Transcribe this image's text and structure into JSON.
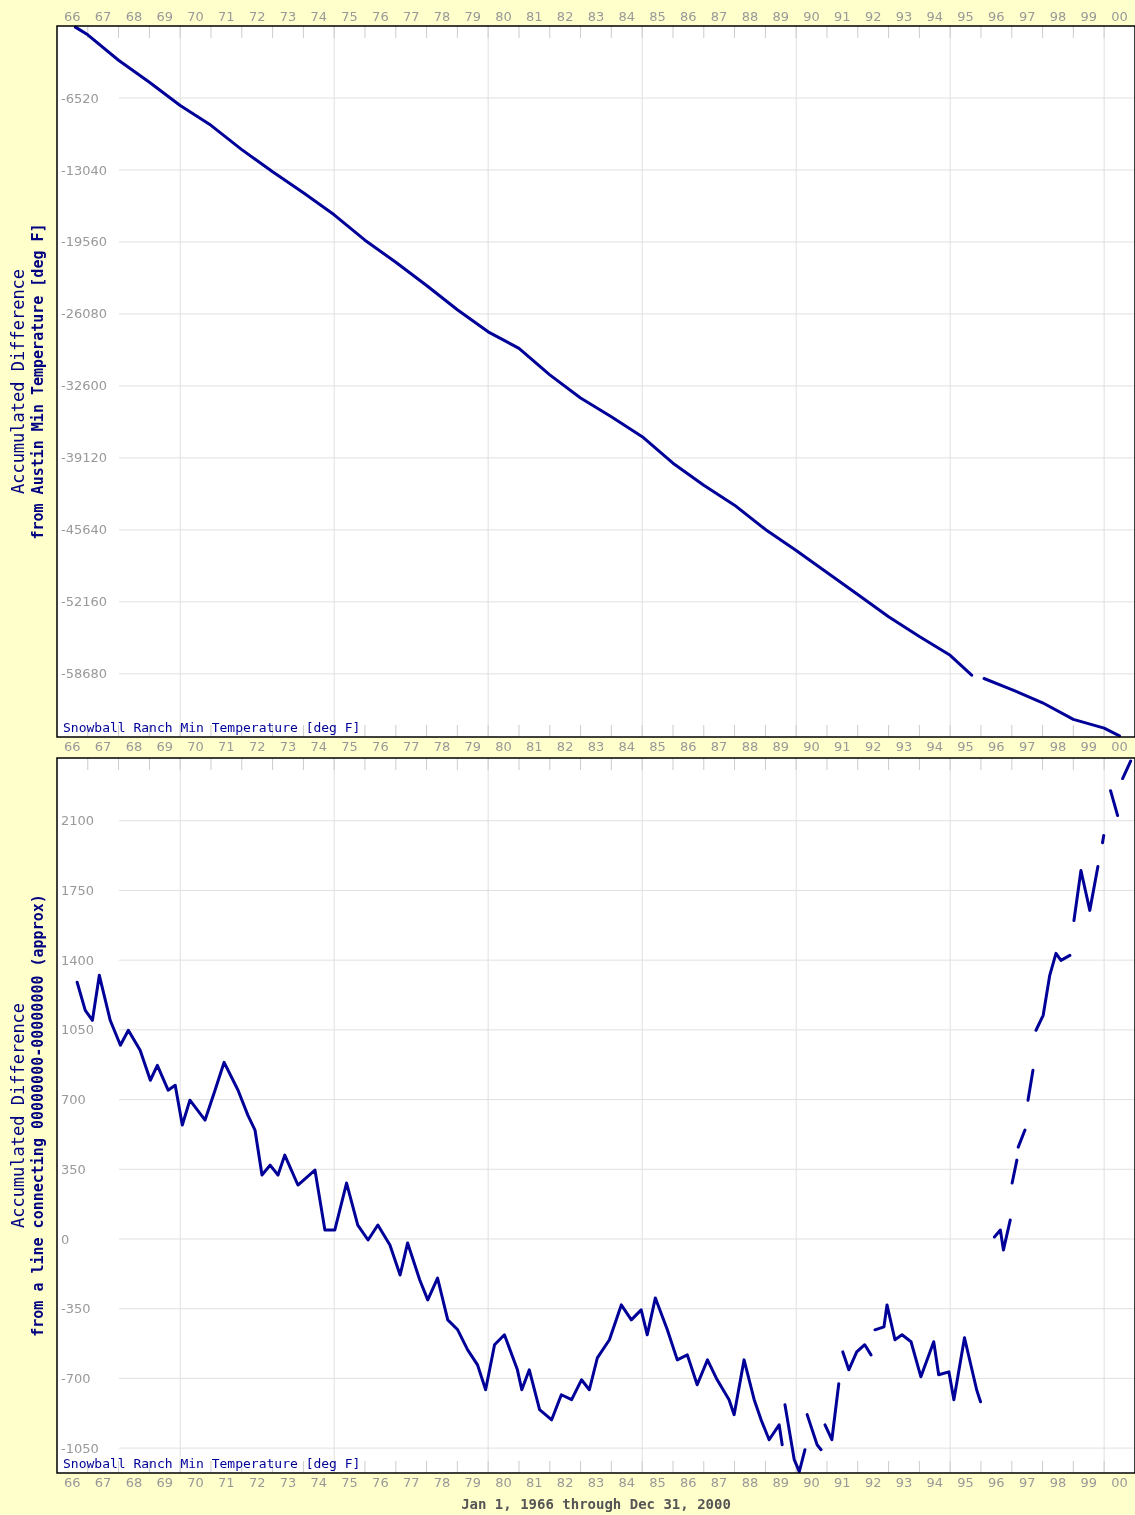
{
  "chart_data": [
    {
      "type": "line",
      "ylabel": "Accumulated Difference\nfrom Austin Min Temperature [deg F]",
      "xlim": [
        "1966-01-01",
        "2001-01-01"
      ],
      "ylim": [
        -64400,
        0
      ],
      "yticks": [
        -6520,
        -13040,
        -19560,
        -26080,
        -32600,
        -39120,
        -45640,
        -52160,
        -58680
      ],
      "xticks": [
        {
          "value": "1966-07-02",
          "label": "66"
        },
        {
          "value": "1967-07-02",
          "label": "67"
        },
        {
          "value": "1968-07-02",
          "label": "68"
        },
        {
          "value": "1969-07-02",
          "label": "69"
        },
        {
          "value": "1970-07-02",
          "label": "70"
        },
        {
          "value": "1971-07-02",
          "label": "71"
        },
        {
          "value": "1972-07-02",
          "label": "72"
        },
        {
          "value": "1973-07-02",
          "label": "73"
        },
        {
          "value": "1974-07-02",
          "label": "74"
        },
        {
          "value": "1975-07-02",
          "label": "75"
        },
        {
          "value": "1976-07-02",
          "label": "76"
        },
        {
          "value": "1977-07-02",
          "label": "77"
        },
        {
          "value": "1978-07-02",
          "label": "78"
        },
        {
          "value": "1979-07-02",
          "label": "79"
        },
        {
          "value": "1980-07-02",
          "label": "80"
        },
        {
          "value": "1981-07-02",
          "label": "81"
        },
        {
          "value": "1982-07-02",
          "label": "82"
        },
        {
          "value": "1983-07-02",
          "label": "83"
        },
        {
          "value": "1984-07-02",
          "label": "84"
        },
        {
          "value": "1985-07-02",
          "label": "85"
        },
        {
          "value": "1986-07-02",
          "label": "86"
        },
        {
          "value": "1987-07-02",
          "label": "87"
        },
        {
          "value": "1988-07-02",
          "label": "88"
        },
        {
          "value": "1989-07-02",
          "label": "89"
        },
        {
          "value": "1990-07-02",
          "label": "90"
        },
        {
          "value": "1991-07-02",
          "label": "91"
        },
        {
          "value": "1992-07-02",
          "label": "92"
        },
        {
          "value": "1993-07-02",
          "label": "93"
        },
        {
          "value": "1994-07-02",
          "label": "94"
        },
        {
          "value": "1995-07-02",
          "label": "95"
        },
        {
          "value": "1996-07-02",
          "label": "96"
        },
        {
          "value": "1997-07-02",
          "label": "97"
        },
        {
          "value": "1998-07-02",
          "label": "98"
        },
        {
          "value": "1999-07-02",
          "label": "99"
        },
        {
          "value": "2000-07-02",
          "label": "00"
        },
        {
          "value": "1967-01-01",
          "label": null
        },
        {
          "value": "1968-01-01",
          "label": null
        },
        {
          "value": "1969-01-01",
          "label": null
        },
        {
          "value": "1970-01-01",
          "label": null
        },
        {
          "value": "1971-01-01",
          "label": null
        },
        {
          "value": "1972-01-01",
          "label": null
        },
        {
          "value": "1973-01-01",
          "label": null
        },
        {
          "value": "1974-01-01",
          "label": null
        },
        {
          "value": "1975-01-01",
          "label": null
        },
        {
          "value": "1976-01-01",
          "label": null
        },
        {
          "value": "1977-01-01",
          "label": null
        },
        {
          "value": "1978-01-01",
          "label": null
        },
        {
          "value": "1979-01-01",
          "label": null
        },
        {
          "value": "1980-01-01",
          "label": null
        },
        {
          "value": "1981-01-01",
          "label": null
        },
        {
          "value": "1982-01-01",
          "label": null
        },
        {
          "value": "1983-01-01",
          "label": null
        },
        {
          "value": "1984-01-01",
          "label": null
        },
        {
          "value": "1985-01-01",
          "label": null
        },
        {
          "value": "1986-01-01",
          "label": null
        },
        {
          "value": "1987-01-01",
          "label": null
        },
        {
          "value": "1988-01-01",
          "label": null
        },
        {
          "value": "1989-01-01",
          "label": null
        },
        {
          "value": "1990-01-01",
          "label": null
        },
        {
          "value": "1991-01-01",
          "label": null
        },
        {
          "value": "1992-01-01",
          "label": null
        },
        {
          "value": "1993-01-01",
          "label": null
        },
        {
          "value": "1994-01-01",
          "label": null
        },
        {
          "value": "1995-01-01",
          "label": null
        },
        {
          "value": "1996-01-01",
          "label": null
        },
        {
          "value": "1997-01-01",
          "label": null
        },
        {
          "value": "1998-01-01",
          "label": null
        },
        {
          "value": "1999-01-01",
          "label": null
        },
        {
          "value": "2000-01-01",
          "label": null
        }
      ],
      "x2lim": [
        "1966-01-01",
        "2001-01-01"
      ],
      "x2ticks": [
        {
          "value": "1966-07-02",
          "label": "66"
        },
        {
          "value": "1967-07-02",
          "label": "67"
        },
        {
          "value": "1968-07-02",
          "label": "68"
        },
        {
          "value": "1969-07-02",
          "label": "69"
        },
        {
          "value": "1970-07-02",
          "label": "70"
        },
        {
          "value": "1971-07-02",
          "label": "71"
        },
        {
          "value": "1972-07-02",
          "label": "72"
        },
        {
          "value": "1973-07-02",
          "label": "73"
        },
        {
          "value": "1974-07-02",
          "label": "74"
        },
        {
          "value": "1975-07-02",
          "label": "75"
        },
        {
          "value": "1976-07-02",
          "label": "76"
        },
        {
          "value": "1977-07-02",
          "label": "77"
        },
        {
          "value": "1978-07-02",
          "label": "78"
        },
        {
          "value": "1979-07-02",
          "label": "79"
        },
        {
          "value": "1980-07-02",
          "label": "80"
        },
        {
          "value": "1981-07-02",
          "label": "81"
        },
        {
          "value": "1982-07-02",
          "label": "82"
        },
        {
          "value": "1983-07-02",
          "label": "83"
        },
        {
          "value": "1984-07-02",
          "label": "84"
        },
        {
          "value": "1985-07-02",
          "label": "85"
        },
        {
          "value": "1986-07-02",
          "label": "86"
        },
        {
          "value": "1987-07-02",
          "label": "87"
        },
        {
          "value": "1988-07-02",
          "label": "88"
        },
        {
          "value": "1989-07-02",
          "label": "89"
        },
        {
          "value": "1990-07-02",
          "label": "90"
        },
        {
          "value": "1991-07-02",
          "label": "91"
        },
        {
          "value": "1992-07-02",
          "label": "92"
        },
        {
          "value": "1993-07-02",
          "label": "93"
        },
        {
          "value": "1994-07-02",
          "label": "94"
        },
        {
          "value": "1995-07-02",
          "label": "95"
        },
        {
          "value": "1996-07-02",
          "label": "96"
        },
        {
          "value": "1997-07-02",
          "label": "97"
        },
        {
          "value": "1998-07-02",
          "label": "98"
        },
        {
          "value": "1999-07-02",
          "label": "99"
        },
        {
          "value": "2000-07-02",
          "label": "00"
        },
        {
          "value": "1967-01-01",
          "label": null
        },
        {
          "value": "1968-01-01",
          "label": null
        },
        {
          "value": "1969-01-01",
          "label": null
        },
        {
          "value": "1970-01-01",
          "label": null
        },
        {
          "value": "1971-01-01",
          "label": null
        },
        {
          "value": "1972-01-01",
          "label": null
        },
        {
          "value": "1973-01-01",
          "label": null
        },
        {
          "value": "1974-01-01",
          "label": null
        },
        {
          "value": "1975-01-01",
          "label": null
        },
        {
          "value": "1976-01-01",
          "label": null
        },
        {
          "value": "1977-01-01",
          "label": null
        },
        {
          "value": "1978-01-01",
          "label": null
        },
        {
          "value": "1979-01-01",
          "label": null
        },
        {
          "value": "1980-01-01",
          "label": null
        },
        {
          "value": "1981-01-01",
          "label": null
        },
        {
          "value": "1982-01-01",
          "label": null
        },
        {
          "value": "1983-01-01",
          "label": null
        },
        {
          "value": "1984-01-01",
          "label": null
        },
        {
          "value": "1985-01-01",
          "label": null
        },
        {
          "value": "1986-01-01",
          "label": null
        },
        {
          "value": "1987-01-01",
          "label": null
        },
        {
          "value": "1988-01-01",
          "label": null
        },
        {
          "value": "1989-01-01",
          "label": null
        },
        {
          "value": "1990-01-01",
          "label": null
        },
        {
          "value": "1991-01-01",
          "label": null
        },
        {
          "value": "1992-01-01",
          "label": null
        },
        {
          "value": "1993-01-01",
          "label": null
        },
        {
          "value": "1994-01-01",
          "label": null
        },
        {
          "value": "1995-01-01",
          "label": null
        },
        {
          "value": "1996-01-01",
          "label": null
        },
        {
          "value": "1997-01-01",
          "label": null
        },
        {
          "value": "1998-01-01",
          "label": null
        },
        {
          "value": "1999-01-01",
          "label": null
        },
        {
          "value": "2000-01-01",
          "label": null
        }
      ],
      "grid": true,
      "line_style": "solid",
      "series": [
        {
          "name": "Snowball Ranch Min Temperature [deg F]",
          "color": "#000099",
          "x": [
            "1966-08-07",
            "1967-01-01",
            "1968-01-01",
            "1969-01-01",
            "1970-01-01",
            "1971-01-01",
            "1972-01-01",
            "1973-01-01",
            "1974-01-01",
            "1975-01-01",
            "1976-01-01",
            "1977-01-01",
            "1978-01-01",
            "1979-01-01",
            "1980-01-01",
            "1981-01-01",
            "1982-01-01",
            "1983-01-01",
            "1984-01-01",
            "1985-01-01",
            "1986-01-01",
            "1987-01-01",
            "1988-01-01",
            "1989-01-01",
            "1990-01-01",
            "1991-01-01",
            "1992-01-01",
            "1993-01-01",
            "1994-01-01",
            "1995-01-01",
            "1995-09-13",
            "1995-11-01",
            "1996-02-07",
            "1997-01-01",
            "1998-01-01",
            "1999-01-01",
            "2000-01-01",
            "2000-07-01"
          ],
          "values": [
            -100,
            -800,
            -3100,
            -5100,
            -7200,
            -9000,
            -11200,
            -13200,
            -15100,
            -17100,
            -19400,
            -21400,
            -23500,
            -25700,
            -27700,
            -29200,
            -31600,
            -33700,
            -35400,
            -37200,
            -39600,
            -41600,
            -43400,
            -45600,
            -47500,
            -49500,
            -51500,
            -53500,
            -55300,
            -57000,
            -58800,
            null,
            -59100,
            -60100,
            -61300,
            -62800,
            -63600,
            -64300
          ]
        }
      ]
    },
    {
      "type": "line",
      "ylabel": "Accumulated Difference\nfrom a line connecting 00000000-00000000 (approx)",
      "xlabel": "Jan 1, 1966 through Dec 31, 2000",
      "xlim": [
        "1966-01-01",
        "2001-01-01"
      ],
      "ylim": [
        -1175,
        2415
      ],
      "yticks": [
        -1050,
        -700,
        -350,
        0,
        350,
        700,
        1050,
        1400,
        1750,
        2100
      ],
      "xticks": [
        {
          "value": "1966-07-02",
          "label": "66"
        },
        {
          "value": "1967-07-02",
          "label": "67"
        },
        {
          "value": "1968-07-02",
          "label": "68"
        },
        {
          "value": "1969-07-02",
          "label": "69"
        },
        {
          "value": "1970-07-02",
          "label": "70"
        },
        {
          "value": "1971-07-02",
          "label": "71"
        },
        {
          "value": "1972-07-02",
          "label": "72"
        },
        {
          "value": "1973-07-02",
          "label": "73"
        },
        {
          "value": "1974-07-02",
          "label": "74"
        },
        {
          "value": "1975-07-02",
          "label": "75"
        },
        {
          "value": "1976-07-02",
          "label": "76"
        },
        {
          "value": "1977-07-02",
          "label": "77"
        },
        {
          "value": "1978-07-02",
          "label": "78"
        },
        {
          "value": "1979-07-02",
          "label": "79"
        },
        {
          "value": "1980-07-02",
          "label": "80"
        },
        {
          "value": "1981-07-02",
          "label": "81"
        },
        {
          "value": "1982-07-02",
          "label": "82"
        },
        {
          "value": "1983-07-02",
          "label": "83"
        },
        {
          "value": "1984-07-02",
          "label": "84"
        },
        {
          "value": "1985-07-02",
          "label": "85"
        },
        {
          "value": "1986-07-02",
          "label": "86"
        },
        {
          "value": "1987-07-02",
          "label": "87"
        },
        {
          "value": "1988-07-02",
          "label": "88"
        },
        {
          "value": "1989-07-02",
          "label": "89"
        },
        {
          "value": "1990-07-02",
          "label": "90"
        },
        {
          "value": "1991-07-02",
          "label": "91"
        },
        {
          "value": "1992-07-02",
          "label": "92"
        },
        {
          "value": "1993-07-02",
          "label": "93"
        },
        {
          "value": "1994-07-02",
          "label": "94"
        },
        {
          "value": "1995-07-02",
          "label": "95"
        },
        {
          "value": "1996-07-02",
          "label": "96"
        },
        {
          "value": "1997-07-02",
          "label": "97"
        },
        {
          "value": "1998-07-02",
          "label": "98"
        },
        {
          "value": "1999-07-02",
          "label": "99"
        },
        {
          "value": "2000-07-02",
          "label": "00"
        },
        {
          "value": "1967-01-01",
          "label": null
        },
        {
          "value": "1968-01-01",
          "label": null
        },
        {
          "value": "1969-01-01",
          "label": null
        },
        {
          "value": "1970-01-01",
          "label": null
        },
        {
          "value": "1971-01-01",
          "label": null
        },
        {
          "value": "1972-01-01",
          "label": null
        },
        {
          "value": "1973-01-01",
          "label": null
        },
        {
          "value": "1974-01-01",
          "label": null
        },
        {
          "value": "1975-01-01",
          "label": null
        },
        {
          "value": "1976-01-01",
          "label": null
        },
        {
          "value": "1977-01-01",
          "label": null
        },
        {
          "value": "1978-01-01",
          "label": null
        },
        {
          "value": "1979-01-01",
          "label": null
        },
        {
          "value": "1980-01-01",
          "label": null
        },
        {
          "value": "1981-01-01",
          "label": null
        },
        {
          "value": "1982-01-01",
          "label": null
        },
        {
          "value": "1983-01-01",
          "label": null
        },
        {
          "value": "1984-01-01",
          "label": null
        },
        {
          "value": "1985-01-01",
          "label": null
        },
        {
          "value": "1986-01-01",
          "label": null
        },
        {
          "value": "1987-01-01",
          "label": null
        },
        {
          "value": "1988-01-01",
          "label": null
        },
        {
          "value": "1989-01-01",
          "label": null
        },
        {
          "value": "1990-01-01",
          "label": null
        },
        {
          "value": "1991-01-01",
          "label": null
        },
        {
          "value": "1992-01-01",
          "label": null
        },
        {
          "value": "1993-01-01",
          "label": null
        },
        {
          "value": "1994-01-01",
          "label": null
        },
        {
          "value": "1995-01-01",
          "label": null
        },
        {
          "value": "1996-01-01",
          "label": null
        },
        {
          "value": "1997-01-01",
          "label": null
        },
        {
          "value": "1998-01-01",
          "label": null
        },
        {
          "value": "1999-01-01",
          "label": null
        },
        {
          "value": "2000-01-01",
          "label": null
        }
      ],
      "grid": true,
      "line_style": "solid",
      "series": [
        {
          "name": "Snowball Ranch Min Temperature [deg F]",
          "color": "#000099",
          "x": [
            "1966-08-28",
            "1966-12-02",
            "1967-02-25",
            "1967-05-18",
            "1967-09-24",
            "1968-01-23",
            "1968-04-26",
            "1968-09-13",
            "1969-01-12",
            "1969-04-05",
            "1969-08-11",
            "1969-11-03",
            "1970-01-26",
            "1970-04-26",
            "1970-10-23",
            "1971-02-18",
            "1971-06-06",
            "1971-11-18",
            "1972-03-13",
            "1972-06-06",
            "1972-08-28",
            "1972-12-02",
            "1973-03-06",
            "1973-05-25",
            "1973-10-28",
            "1974-05-18",
            "1974-09-13",
            "1975-01-08",
            "1975-05-28",
            "1975-10-08",
            "1976-02-07",
            "1976-06-02",
            "1976-10-23",
            "1977-02-21",
            "1977-05-21",
            "1977-10-12",
            "1978-01-15",
            "1978-05-11",
            "1978-09-09",
            "1979-01-05",
            "1979-05-03",
            "1979-08-28",
            "1979-12-02",
            "1980-03-17",
            "1980-07-12",
            "1980-12-13",
            "1981-02-03",
            "1981-05-03",
            "1981-09-02",
            "1982-01-23",
            "1982-05-18",
            "1982-09-17",
            "1983-01-12",
            "1983-04-15",
            "1983-07-19",
            "1983-12-09",
            "1984-04-28",
            "1984-08-25",
            "1984-12-20",
            "1985-03-02",
            "1985-06-06",
            "1985-10-26",
            "1986-02-21",
            "1986-06-20",
            "1986-10-15",
            "1987-02-14",
            "1987-06-09",
            "1987-10-28",
            "1987-12-27",
            "1988-04-23",
            "1988-08-21",
            "1988-11-11",
            "1989-02-14",
            "1989-06-13",
            "1989-07-19",
            "1989-08-01",
            "1989-08-21",
            "1989-12-09",
            "1990-02-07",
            "1990-04-15",
            "1990-04-22",
            "1990-05-11",
            "1990-09-06",
            "1990-10-23",
            "1990-11-05",
            "1990-12-09",
            "1991-02-28",
            "1991-05-21",
            "1991-06-01",
            "1991-07-08",
            "1991-09-17",
            "1991-12-20",
            "1992-03-24",
            "1992-06-06",
            "1992-06-20",
            "1992-07-23",
            "1992-11-07",
            "1992-12-13",
            "1993-03-17",
            "1993-06-09",
            "1993-09-24",
            "1994-01-19",
            "1994-06-20",
            "1994-08-18",
            "1994-12-17",
            "1995-02-14",
            "1995-06-20",
            "1995-11-11",
            "1995-12-27",
            "1996-03-01",
            "1996-06-09",
            "1996-08-18",
            "1996-09-24",
            "1996-12-13",
            "1996-12-25",
            "1997-01-05",
            "1997-03-02",
            "1997-03-10",
            "1997-03-18",
            "1997-06-06",
            "1997-06-15",
            "1997-07-12",
            "1997-09-09",
            "1997-09-18",
            "1997-10-15",
            "1998-01-08",
            "1998-03-27",
            "1998-06-09",
            "1998-08-07",
            "1998-11-21",
            "1998-12-10",
            "1999-01-08",
            "1999-04-01",
            "1999-07-15",
            "1999-10-19",
            "1999-11-25",
            "1999-12-13",
            "1999-12-27",
            "2000-02-01",
            "2000-03-17",
            "2000-06-09",
            "2000-07-01",
            "2000-08-07",
            "2000-11-11"
          ],
          "values": [
            1289,
            1148,
            1098,
            1324,
            1098,
            973,
            1048,
            948,
            797,
            872,
            747,
            772,
            572,
            697,
            597,
            747,
            887,
            747,
            622,
            547,
            321,
            371,
            321,
            421,
            271,
            346,
            45,
            45,
            281,
            70,
            -5,
            70,
            -30,
            -181,
            -20,
            -206,
            -306,
            -196,
            -406,
            -456,
            -557,
            -632,
            -757,
            -531,
            -481,
            -657,
            -757,
            -657,
            -857,
            -908,
            -782,
            -807,
            -707,
            -757,
            -597,
            -506,
            -331,
            -406,
            -356,
            -481,
            -296,
            -456,
            -607,
            -582,
            -732,
            -607,
            -707,
            -807,
            -882,
            -607,
            -807,
            -908,
            -1008,
            -933,
            -1033,
            null,
            -832,
            -1108,
            -1168,
            -1058,
            null,
            -882,
            -1033,
            -1058,
            null,
            -933,
            -1008,
            -727,
            null,
            -567,
            -657,
            -567,
            -531,
            -582,
            null,
            -456,
            -441,
            -331,
            -506,
            -481,
            -516,
            -692,
            -516,
            -682,
            -667,
            -807,
            -496,
            -757,
            -817,
            null,
            10,
            45,
            -55,
            95,
            null,
            281,
            396,
            null,
            461,
            547,
            null,
            697,
            847,
            null,
            1048,
            1123,
            1324,
            1434,
            1399,
            1424,
            null,
            1599,
            1850,
            1650,
            1870,
            null,
            1990,
            2026,
            null,
            2251,
            2126,
            null,
            2312,
            2400
          ]
        }
      ]
    }
  ]
}
